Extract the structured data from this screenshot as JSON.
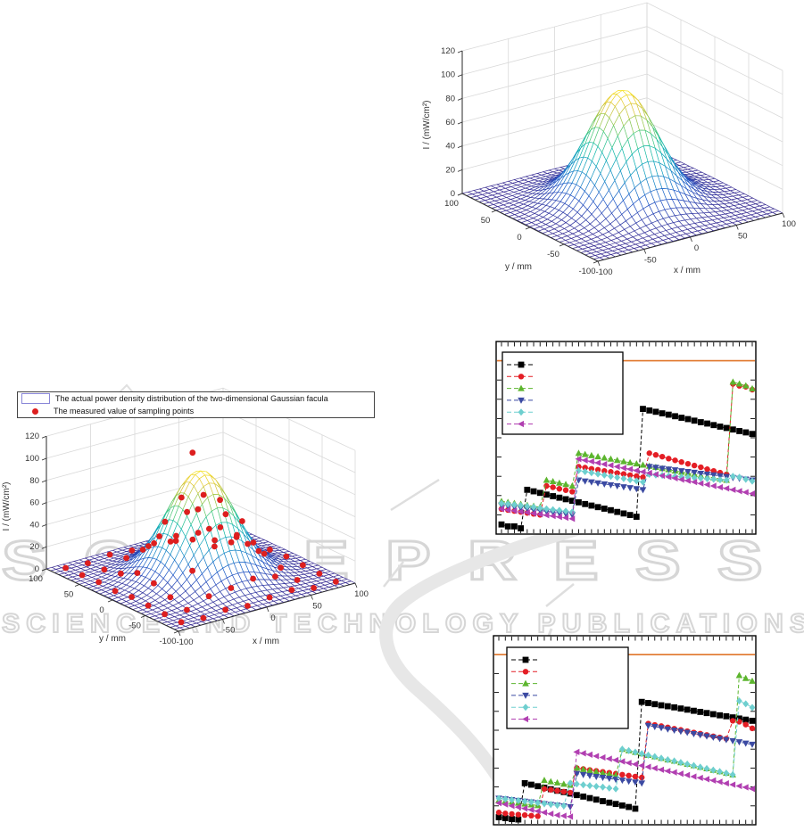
{
  "watermark": {
    "line1": "SCITEPRESS",
    "line2": "SCIENCE AND TECHNOLOGY PUBLICATIONS",
    "color": "#d6d6d6"
  },
  "chart_data": [
    {
      "id": "surface-top",
      "type": "surface3d",
      "zlabel": "I / (mW/cm²)",
      "xlabel": "x / mm",
      "ylabel": "y / mm",
      "z_ticks": [
        0,
        20,
        40,
        60,
        80,
        100,
        120
      ],
      "xy_ticks": [
        -100,
        -50,
        0,
        50,
        100
      ],
      "zlim": [
        0,
        120
      ],
      "xlim": [
        -100,
        100
      ],
      "ylim": [
        -100,
        100
      ],
      "grid": true,
      "colormap": "parula",
      "gauss": {
        "amplitude": 95,
        "sigma": 31,
        "range": [
          -100,
          100
        ],
        "grid_step": 6.25
      }
    },
    {
      "id": "surface-mid",
      "type": "surface3d",
      "zlabel": "I / (mW/cm²)",
      "xlabel": "x / mm",
      "ylabel": "y / mm",
      "z_ticks": [
        0,
        20,
        40,
        60,
        80,
        100,
        120
      ],
      "xy_ticks": [
        -100,
        -50,
        0,
        50,
        100
      ],
      "zlim": [
        0,
        120
      ],
      "xlim": [
        -100,
        100
      ],
      "ylim": [
        -100,
        100
      ],
      "grid": true,
      "colormap": "parula",
      "gauss": {
        "amplitude": 95,
        "sigma": 31,
        "range": [
          -100,
          100
        ],
        "grid_step": 6.25
      },
      "legend": [
        {
          "label": "The actual power density distribution of the two-dimensional Gaussian facula",
          "swatch": "mesh-rectangle",
          "swatch_color": "#8a87d8"
        },
        {
          "label": "The measured value of sampling points",
          "swatch": "dot",
          "swatch_color": "#dd1f1f"
        }
      ],
      "sample_color": "#dd1f1f",
      "samples": [
        [
          -87.5,
          -87.5,
          2
        ],
        [
          -62.5,
          -87.5,
          0.3
        ],
        [
          -37.5,
          -87.5,
          2.4
        ],
        [
          -12.5,
          -87.5,
          0.4
        ],
        [
          12.5,
          -87.5,
          2.6
        ],
        [
          37.5,
          -87.5,
          3.9
        ],
        [
          62.5,
          -87.5,
          0.3
        ],
        [
          87.5,
          -87.5,
          0.5
        ],
        [
          -87.5,
          -62.5,
          2.2
        ],
        [
          -62.5,
          -62.5,
          0.6
        ],
        [
          -37.5,
          -62.5,
          7.5
        ],
        [
          -12.5,
          -62.5,
          9.5
        ],
        [
          12.5,
          -62.5,
          12.5
        ],
        [
          37.5,
          -62.5,
          9
        ],
        [
          62.5,
          -62.5,
          0.4
        ],
        [
          87.5,
          -62.5,
          0.7
        ],
        [
          -87.5,
          -37.5,
          2.9
        ],
        [
          -62.5,
          -37.5,
          5
        ],
        [
          -37.5,
          -37.5,
          23.5
        ],
        [
          -12.5,
          -37.5,
          40
        ],
        [
          12.5,
          -37.5,
          43
        ],
        [
          37.5,
          -37.5,
          25
        ],
        [
          62.5,
          -37.5,
          4.5
        ],
        [
          87.5,
          -37.5,
          1.4
        ],
        [
          -87.5,
          -12.5,
          3.6
        ],
        [
          -62.5,
          -12.5,
          10.5
        ],
        [
          -37.5,
          -12.5,
          43.5
        ],
        [
          -12.5,
          -12.5,
          66.6
        ],
        [
          12.5,
          -12.5,
          69.6
        ],
        [
          37.5,
          -12.5,
          45
        ],
        [
          62.5,
          -12.5,
          10
        ],
        [
          87.5,
          -12.5,
          2.1
        ],
        [
          -87.5,
          12.5,
          1.9
        ],
        [
          -62.5,
          12.5,
          12.8
        ],
        [
          -37.5,
          12.5,
          40.5
        ],
        [
          -12.5,
          12.5,
          70.2
        ],
        [
          12.5,
          12.5,
          67.1
        ],
        [
          37.5,
          12.5,
          44.2
        ],
        [
          62.5,
          12.5,
          11.9
        ],
        [
          87.5,
          12.5,
          1.2
        ],
        [
          -87.5,
          37.5,
          2.9
        ],
        [
          -62.5,
          37.5,
          5.2
        ],
        [
          -37.5,
          37.5,
          21.4
        ],
        [
          -12.5,
          37.5,
          41.2
        ],
        [
          12.5,
          37.5,
          44.6
        ],
        [
          37.5,
          37.5,
          23.9
        ],
        [
          62.5,
          37.5,
          6.3
        ],
        [
          87.5,
          37.5,
          0.6
        ],
        [
          -87.5,
          62.5,
          2.2
        ],
        [
          -62.5,
          62.5,
          1.8
        ],
        [
          -37.5,
          62.5,
          6.8
        ],
        [
          -12.5,
          62.5,
          12.1
        ],
        [
          12.5,
          62.5,
          10.8
        ],
        [
          37.5,
          62.5,
          7.2
        ],
        [
          62.5,
          62.5,
          1.1
        ],
        [
          87.5,
          62.5,
          0.4
        ],
        [
          -87.5,
          87.5,
          1.6
        ],
        [
          -62.5,
          87.5,
          0.5
        ],
        [
          -37.5,
          87.5,
          2.8
        ],
        [
          -12.5,
          87.5,
          1.1
        ],
        [
          12.5,
          87.5,
          2.2
        ],
        [
          37.5,
          87.5,
          3.4
        ],
        [
          62.5,
          87.5,
          0.8
        ],
        [
          87.5,
          87.5,
          0.3
        ],
        [
          0,
          12.5,
          108
        ]
      ]
    },
    {
      "id": "line-mid-right",
      "type": "line",
      "x_unit": "sample-index",
      "y_unit": "fraction-of-axis-height",
      "n_points": 40,
      "ref_line": {
        "value": 0.9,
        "color": "#e0762a"
      },
      "legend_position": "top-left",
      "series": [
        {
          "name": "series-black-square",
          "color": "#000000",
          "marker": "square",
          "values": [
            0.05,
            0.04,
            0.04,
            0.03,
            0.23,
            0.222,
            0.214,
            0.205,
            0.197,
            0.189,
            0.181,
            0.173,
            0.165,
            0.156,
            0.148,
            0.14,
            0.132,
            0.124,
            0.115,
            0.107,
            0.099,
            0.09,
            0.65,
            0.642,
            0.635,
            0.627,
            0.62,
            0.612,
            0.604,
            0.597,
            0.589,
            0.581,
            0.574,
            0.566,
            0.558,
            0.551,
            0.543,
            0.535,
            0.528,
            0.52
          ]
        },
        {
          "name": "series-red-circle",
          "color": "#e41e25",
          "marker": "circle",
          "values": [
            0.13,
            0.125,
            0.12,
            0.115,
            0.11,
            0.105,
            0.1,
            0.25,
            0.243,
            0.235,
            0.228,
            0.22,
            0.35,
            0.345,
            0.339,
            0.334,
            0.328,
            0.323,
            0.317,
            0.312,
            0.306,
            0.301,
            0.295,
            0.42,
            0.411,
            0.402,
            0.392,
            0.383,
            0.374,
            0.365,
            0.356,
            0.347,
            0.337,
            0.328,
            0.319,
            0.31,
            0.78,
            0.77,
            0.765,
            0.75
          ]
        },
        {
          "name": "series-green-triangle-up",
          "color": "#5cb52e",
          "marker": "triangle-up",
          "values": [
            0.17,
            0.165,
            0.16,
            0.155,
            0.15,
            0.145,
            0.14,
            0.28,
            0.273,
            0.265,
            0.258,
            0.25,
            0.42,
            0.414,
            0.408,
            0.402,
            0.396,
            0.39,
            0.383,
            0.377,
            0.371,
            0.365,
            0.359,
            0.353,
            0.347,
            0.341,
            0.335,
            0.328,
            0.322,
            0.316,
            0.31,
            0.304,
            0.298,
            0.292,
            0.286,
            0.28,
            0.79,
            0.78,
            0.77,
            0.755
          ]
        },
        {
          "name": "series-blue-triangle-down",
          "color": "#3b4aa2",
          "marker": "triangle-down",
          "values": [
            0.15,
            0.145,
            0.141,
            0.136,
            0.132,
            0.127,
            0.123,
            0.118,
            0.114,
            0.109,
            0.105,
            0.1,
            0.28,
            0.275,
            0.27,
            0.265,
            0.26,
            0.255,
            0.25,
            0.245,
            0.24,
            0.235,
            0.23,
            0.35,
            0.346,
            0.341,
            0.337,
            0.333,
            0.328,
            0.324,
            0.32,
            0.315,
            0.311,
            0.307,
            0.302,
            0.298,
            0.293,
            0.289,
            0.285,
            0.28
          ]
        },
        {
          "name": "series-cyan-diamond",
          "color": "#6ecfcf",
          "marker": "diamond",
          "values": [
            0.16,
            0.156,
            0.152,
            0.148,
            0.144,
            0.14,
            0.135,
            0.131,
            0.127,
            0.123,
            0.119,
            0.115,
            0.33,
            0.324,
            0.318,
            0.312,
            0.306,
            0.3,
            0.294,
            0.288,
            0.282,
            0.276,
            0.27,
            0.31,
            0.307,
            0.305,
            0.302,
            0.3,
            0.297,
            0.295,
            0.292,
            0.29,
            0.287,
            0.285,
            0.282,
            0.28,
            0.3,
            0.295,
            0.285,
            0.275
          ]
        },
        {
          "name": "series-magenta-triangle-left",
          "color": "#b13fb1",
          "marker": "triangle-left",
          "values": [
            0.13,
            0.125,
            0.121,
            0.116,
            0.112,
            0.107,
            0.103,
            0.098,
            0.094,
            0.089,
            0.085,
            0.08,
            0.39,
            0.383,
            0.377,
            0.37,
            0.363,
            0.357,
            0.35,
            0.343,
            0.337,
            0.33,
            0.323,
            0.317,
            0.31,
            0.303,
            0.297,
            0.29,
            0.283,
            0.277,
            0.27,
            0.263,
            0.257,
            0.25,
            0.243,
            0.237,
            0.23,
            0.223,
            0.217,
            0.21
          ]
        }
      ]
    },
    {
      "id": "line-bottom-right",
      "type": "line",
      "x_unit": "sample-index",
      "y_unit": "fraction-of-axis-height",
      "n_points": 40,
      "ref_line": {
        "value": 0.9,
        "color": "#e0762a"
      },
      "legend_position": "top-left",
      "series": [
        {
          "name": "series-black-square",
          "color": "#000000",
          "marker": "square",
          "values": [
            0.04,
            0.035,
            0.03,
            0.028,
            0.22,
            0.212,
            0.204,
            0.196,
            0.188,
            0.18,
            0.173,
            0.165,
            0.157,
            0.149,
            0.141,
            0.133,
            0.125,
            0.117,
            0.11,
            0.102,
            0.094,
            0.085,
            0.65,
            0.644,
            0.638,
            0.632,
            0.627,
            0.621,
            0.615,
            0.609,
            0.603,
            0.597,
            0.591,
            0.585,
            0.579,
            0.574,
            0.568,
            0.562,
            0.556,
            0.55
          ]
        },
        {
          "name": "series-red-circle",
          "color": "#e41e25",
          "marker": "circle",
          "values": [
            0.065,
            0.06,
            0.057,
            0.054,
            0.051,
            0.048,
            0.045,
            0.19,
            0.185,
            0.18,
            0.175,
            0.17,
            0.3,
            0.295,
            0.29,
            0.285,
            0.28,
            0.275,
            0.27,
            0.265,
            0.26,
            0.255,
            0.25,
            0.535,
            0.528,
            0.522,
            0.515,
            0.508,
            0.502,
            0.495,
            0.488,
            0.482,
            0.475,
            0.468,
            0.462,
            0.455,
            0.55,
            0.545,
            0.53,
            0.51
          ]
        },
        {
          "name": "series-green-triangle-up",
          "color": "#5cb52e",
          "marker": "triangle-up",
          "values": [
            0.13,
            0.125,
            0.12,
            0.115,
            0.11,
            0.106,
            0.102,
            0.235,
            0.228,
            0.222,
            0.215,
            0.21,
            0.3,
            0.293,
            0.287,
            0.28,
            0.273,
            0.267,
            0.26,
            0.4,
            0.392,
            0.384,
            0.376,
            0.368,
            0.36,
            0.352,
            0.344,
            0.337,
            0.329,
            0.321,
            0.313,
            0.305,
            0.297,
            0.289,
            0.281,
            0.273,
            0.265,
            0.79,
            0.775,
            0.76
          ]
        },
        {
          "name": "series-blue-triangle-down",
          "color": "#3b4aa2",
          "marker": "triangle-down",
          "values": [
            0.14,
            0.136,
            0.132,
            0.128,
            0.124,
            0.12,
            0.116,
            0.111,
            0.107,
            0.103,
            0.099,
            0.095,
            0.27,
            0.265,
            0.26,
            0.255,
            0.25,
            0.245,
            0.24,
            0.235,
            0.23,
            0.225,
            0.22,
            0.525,
            0.519,
            0.513,
            0.506,
            0.5,
            0.494,
            0.488,
            0.481,
            0.475,
            0.469,
            0.463,
            0.456,
            0.45,
            0.444,
            0.438,
            0.431,
            0.425
          ]
        },
        {
          "name": "series-cyan-diamond",
          "color": "#6ecfcf",
          "marker": "diamond",
          "values": [
            0.14,
            0.136,
            0.132,
            0.128,
            0.124,
            0.12,
            0.116,
            0.112,
            0.108,
            0.104,
            0.1,
            0.22,
            0.216,
            0.211,
            0.207,
            0.203,
            0.199,
            0.194,
            0.19,
            0.4,
            0.392,
            0.384,
            0.376,
            0.368,
            0.36,
            0.352,
            0.344,
            0.337,
            0.329,
            0.321,
            0.313,
            0.305,
            0.297,
            0.289,
            0.281,
            0.273,
            0.265,
            0.655,
            0.64,
            0.62
          ]
        },
        {
          "name": "series-magenta-triangle-left",
          "color": "#b13fb1",
          "marker": "triangle-left",
          "values": [
            0.115,
            0.108,
            0.1,
            0.093,
            0.086,
            0.079,
            0.072,
            0.065,
            0.058,
            0.051,
            0.047,
            0.043,
            0.385,
            0.378,
            0.371,
            0.363,
            0.356,
            0.349,
            0.342,
            0.335,
            0.327,
            0.32,
            0.313,
            0.306,
            0.299,
            0.291,
            0.284,
            0.277,
            0.27,
            0.263,
            0.255,
            0.248,
            0.241,
            0.234,
            0.227,
            0.219,
            0.212,
            0.205,
            0.198,
            0.19
          ]
        }
      ]
    }
  ]
}
